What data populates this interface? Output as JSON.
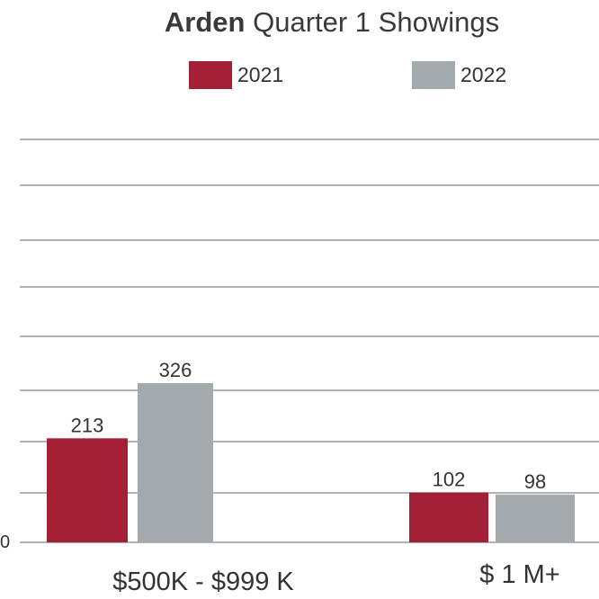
{
  "chart_data": {
    "type": "bar",
    "title_bold": "Arden",
    "title_rest": " Quarter 1 Showings",
    "categories": [
      "$500K - $999 K",
      "$ 1 M+"
    ],
    "series": [
      {
        "name": "2021",
        "color": "#a31f34",
        "values": [
          213,
          102
        ]
      },
      {
        "name": "2022",
        "color": "#a2aaad",
        "values": [
          326,
          98
        ]
      }
    ],
    "y_ticks_shown": [
      "0"
    ],
    "ylim": [
      0,
      825
    ],
    "grid": true,
    "legend_position": "top-center"
  }
}
